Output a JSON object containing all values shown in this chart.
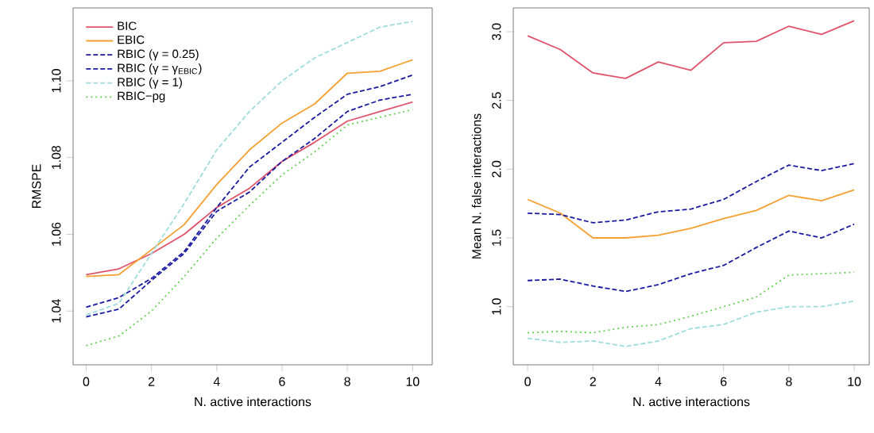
{
  "chart_data": [
    {
      "type": "line",
      "xlabel": "N. active interactions",
      "ylabel": "RMSPE",
      "x": [
        0,
        1,
        2,
        3,
        4,
        5,
        6,
        7,
        8,
        9,
        10
      ],
      "xlim": [
        -0.4,
        10.6
      ],
      "ylim": [
        1.026,
        1.119
      ],
      "xticks": [
        0,
        2,
        4,
        6,
        8,
        10
      ],
      "yticks": [
        1.04,
        1.06,
        1.08,
        {
          "value": 1.1,
          "label": "1.10"
        }
      ],
      "legend": "top left",
      "grid": false,
      "marker": "none",
      "series": [
        {
          "name": "BIC",
          "color": "#df536b",
          "line_style": "solid",
          "values": [
            1.0495,
            1.051,
            1.055,
            1.06,
            1.067,
            1.072,
            1.079,
            1.084,
            1.0895,
            1.092,
            1.0945
          ]
        },
        {
          "name": "EBIC",
          "color": "#f5a030",
          "line_style": "solid",
          "values": [
            1.049,
            1.0495,
            1.056,
            1.0625,
            1.073,
            1.082,
            1.089,
            1.094,
            1.102,
            1.1025,
            1.1055
          ]
        },
        {
          "name": "RBIC (γ = 0.25)",
          "color": "#1a1aa0",
          "line_style": "dashed",
          "values": [
            1.0385,
            1.0405,
            1.048,
            1.055,
            1.066,
            1.071,
            1.079,
            1.085,
            1.092,
            1.095,
            1.0965
          ]
        },
        {
          "name": "RBIC (γ = γ$_{EBIC}$)",
          "color": "#1a1aa0",
          "line_style": "dashed",
          "values": [
            1.041,
            1.0435,
            1.0485,
            1.0555,
            1.067,
            1.0775,
            1.084,
            1.0905,
            1.0965,
            1.0985,
            1.1015
          ]
        },
        {
          "name": "RBIC (γ = 1)",
          "color": "#a0dcdc",
          "line_style": "dashed",
          "values": [
            1.039,
            1.042,
            1.055,
            1.068,
            1.082,
            1.092,
            1.1,
            1.106,
            1.11,
            1.114,
            1.1155
          ]
        },
        {
          "name": "RBIC−pg",
          "color": "#61d04f",
          "line_style": "dotted",
          "values": [
            1.031,
            1.0335,
            1.04,
            1.049,
            1.059,
            1.0675,
            1.0755,
            1.0815,
            1.0885,
            1.0905,
            1.0925
          ]
        }
      ]
    },
    {
      "type": "line",
      "xlabel": "N. active interactions",
      "ylabel": "Mean N. false interactions",
      "x": [
        0,
        1,
        2,
        3,
        4,
        5,
        6,
        7,
        8,
        9,
        10
      ],
      "xlim": [
        -0.44,
        10.46
      ],
      "ylim": [
        0.577,
        3.173
      ],
      "xticks": [
        0,
        2,
        4,
        6,
        8,
        10
      ],
      "yticks": [
        {
          "value": 1.0,
          "label": "1.0"
        },
        1.5,
        {
          "value": 2.0,
          "label": "2.0"
        },
        2.5,
        {
          "value": 3.0,
          "label": "3.0"
        }
      ],
      "grid": false,
      "marker": "none",
      "series": [
        {
          "color": "#df536b",
          "line_style": "solid",
          "values": [
            2.97,
            2.87,
            2.7,
            2.66,
            2.78,
            2.72,
            2.92,
            2.93,
            3.04,
            2.98,
            3.08
          ]
        },
        {
          "color": "#f5a030",
          "line_style": "solid",
          "values": [
            1.78,
            1.68,
            1.5,
            1.5,
            1.52,
            1.57,
            1.64,
            1.7,
            1.81,
            1.77,
            1.85
          ]
        },
        {
          "color": "#1a1aa0",
          "line_style": "dashed",
          "values": [
            1.68,
            1.67,
            1.61,
            1.63,
            1.69,
            1.71,
            1.78,
            1.91,
            2.03,
            1.99,
            2.04
          ]
        },
        {
          "color": "#1a1aa0",
          "line_style": "dashed",
          "values": [
            1.19,
            1.2,
            1.15,
            1.11,
            1.16,
            1.24,
            1.3,
            1.43,
            1.55,
            1.5,
            1.6
          ]
        },
        {
          "color": "#a0dcdc",
          "line_style": "dashed",
          "values": [
            0.77,
            0.74,
            0.75,
            0.71,
            0.75,
            0.84,
            0.87,
            0.96,
            1.0,
            1.0,
            1.04
          ]
        },
        {
          "color": "#61d04f",
          "line_style": "dotted",
          "values": [
            0.81,
            0.82,
            0.81,
            0.85,
            0.87,
            0.93,
            1.0,
            1.07,
            1.23,
            1.24,
            1.25
          ]
        }
      ]
    }
  ]
}
